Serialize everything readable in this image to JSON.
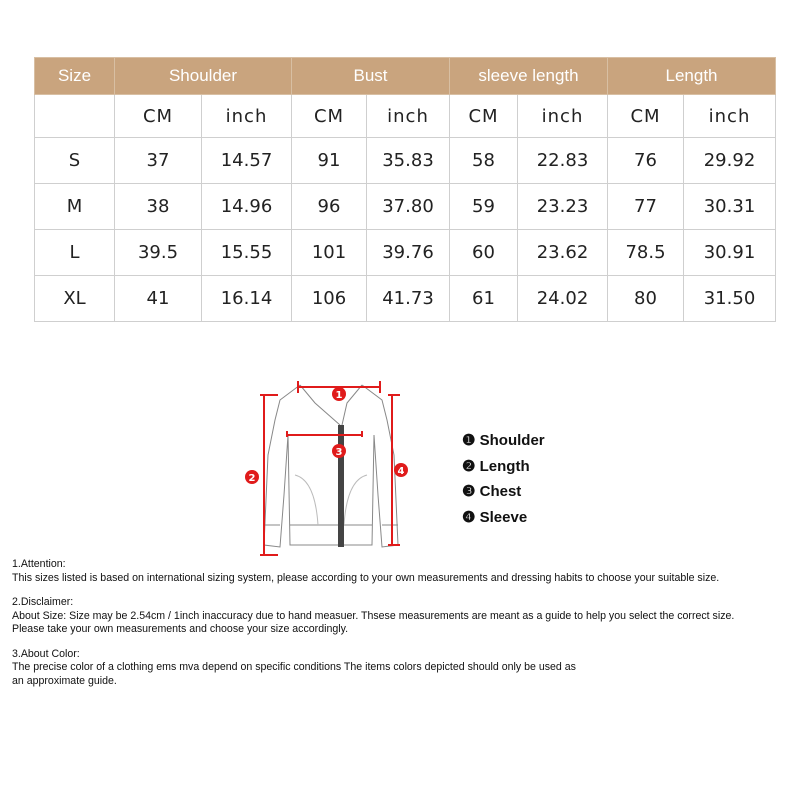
{
  "table": {
    "headers": [
      "Size",
      "Shoulder",
      "Bust",
      "sleeve length",
      "Length"
    ],
    "units": [
      "CM",
      "inch",
      "CM",
      "inch",
      "CM",
      "inch",
      "CM",
      "inch"
    ],
    "rows": [
      {
        "size": "S",
        "values": [
          "37",
          "14.57",
          "91",
          "35.83",
          "58",
          "22.83",
          "76",
          "29.92"
        ]
      },
      {
        "size": "M",
        "values": [
          "38",
          "14.96",
          "96",
          "37.80",
          "59",
          "23.23",
          "77",
          "30.31"
        ]
      },
      {
        "size": "L",
        "values": [
          "39.5",
          "15.55",
          "101",
          "39.76",
          "60",
          "23.62",
          "78.5",
          "30.91"
        ]
      },
      {
        "size": "XL",
        "values": [
          "41",
          "16.14",
          "106",
          "41.73",
          "61",
          "24.02",
          "80",
          "31.50"
        ]
      }
    ]
  },
  "header_color": "#c9a47e",
  "diagram": {
    "markers": [
      "1",
      "2",
      "3",
      "4"
    ],
    "marker_color": "#e01b1b"
  },
  "legend": [
    "❶ Shoulder",
    "❷ Length",
    "❸ Chest",
    "❹ Sleeve"
  ],
  "notes": [
    {
      "title": "1.Attention:",
      "lines": [
        "This sizes listed is based on international sizing system, please according to your own measurements and dressing habits to choose your suitable size."
      ]
    },
    {
      "title": "2.Disclaimer:",
      "lines": [
        "About Size: Size may be 2.54cm / 1inch inaccuracy due to hand measuer. Thsese measurements are meant as a guide to help you select the correct size.",
        "Please take your own measurements and choose your size accordingly."
      ]
    },
    {
      "title": "3.About Color:",
      "lines": [
        "The precise color of a clothing ems mva depend on specific conditions The items colors depicted should only be used as",
        "an approximate guide."
      ]
    }
  ]
}
